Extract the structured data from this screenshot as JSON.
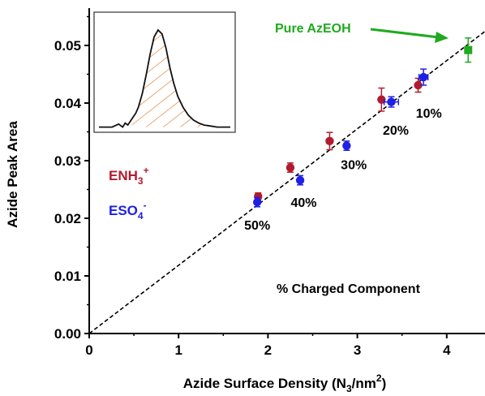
{
  "colors": {
    "enh3": "#b01c2e",
    "eso4": "#1f1fe6",
    "pure": "#1faa1f",
    "hatch": "#e07a2a",
    "axis": "#000000"
  },
  "chart_data": {
    "type": "scatter",
    "xlabel": "Azide Surface Density (N",
    "xlabel_sub": "3",
    "xlabel_tail": "/nm",
    "xlabel_sup": "2",
    "xlabel_end": ")",
    "ylabel": "Azide Peak Area",
    "xlim": [
      0,
      4.45
    ],
    "ylim": [
      0,
      0.055
    ],
    "x_ticks": [
      0,
      1,
      2,
      3,
      4
    ],
    "x_tick_labels": [
      "0",
      "1",
      "2",
      "3",
      "4"
    ],
    "y_ticks": [
      0,
      0.01,
      0.02,
      0.03,
      0.04,
      0.05
    ],
    "y_tick_labels": [
      "0.00",
      "0.01",
      "0.02",
      "0.03",
      "0.04",
      "0.05"
    ],
    "fit_line": {
      "style": "dashed",
      "x": [
        0,
        4.45
      ],
      "y": [
        0,
        0.0527
      ]
    },
    "series": [
      {
        "name_main": "ENH",
        "name_sub": "3",
        "name_sup": "+",
        "color_key": "enh3",
        "points": [
          {
            "x": 1.89,
            "y": 0.0238,
            "yerr": 0.0006
          },
          {
            "x": 2.25,
            "y": 0.0288,
            "yerr": 0.0008
          },
          {
            "x": 2.69,
            "y": 0.0334,
            "yerr": 0.0015
          },
          {
            "x": 3.27,
            "y": 0.0406,
            "yerr": 0.002
          },
          {
            "x": 3.68,
            "y": 0.0431,
            "yerr": 0.0012
          }
        ]
      },
      {
        "name_main": "ESO",
        "name_sub": "4",
        "name_sup": "-",
        "color_key": "eso4",
        "points": [
          {
            "x": 1.88,
            "y": 0.0228,
            "yerr": 0.0008
          },
          {
            "x": 2.36,
            "y": 0.0266,
            "yerr": 0.0008
          },
          {
            "x": 2.88,
            "y": 0.0326,
            "yerr": 0.0008
          },
          {
            "x": 3.38,
            "y": 0.0402,
            "yerr": 0.0009,
            "xerr": 0.08
          },
          {
            "x": 3.74,
            "y": 0.0445,
            "yerr": 0.0014,
            "xerr": 0.05
          }
        ]
      },
      {
        "name_main": "Pure AzEOH",
        "color_key": "pure",
        "points": [
          {
            "x": 4.24,
            "y": 0.0492,
            "yerr": 0.0021
          }
        ]
      }
    ],
    "point_labels": [
      {
        "text": "50%",
        "x": 1.88,
        "y": 0.018
      },
      {
        "text": "40%",
        "x": 2.4,
        "y": 0.022
      },
      {
        "text": "30%",
        "x": 2.96,
        "y": 0.0285
      },
      {
        "text": "20%",
        "x": 3.43,
        "y": 0.0345
      },
      {
        "text": "10%",
        "x": 3.8,
        "y": 0.0375
      }
    ],
    "annotations": {
      "pure_label": "Pure AzEOH",
      "footer": "% Charged Component"
    },
    "inset": {
      "type": "area",
      "fill": "hatched",
      "x": [
        0.0,
        0.05,
        0.1,
        0.15,
        0.18,
        0.2,
        0.22,
        0.25,
        0.28,
        0.3,
        0.33,
        0.36,
        0.39,
        0.42,
        0.45,
        0.48,
        0.51,
        0.54,
        0.57,
        0.6,
        0.64,
        0.68,
        0.72,
        0.76,
        0.8,
        0.85,
        0.9,
        0.95,
        1.0
      ],
      "y": [
        0.02,
        0.02,
        0.02,
        0.05,
        0.02,
        0.06,
        0.04,
        0.1,
        0.16,
        0.22,
        0.36,
        0.55,
        0.76,
        0.93,
        1.0,
        0.96,
        0.82,
        0.62,
        0.46,
        0.33,
        0.22,
        0.14,
        0.09,
        0.06,
        0.04,
        0.03,
        0.02,
        0.02,
        0.02
      ]
    }
  }
}
